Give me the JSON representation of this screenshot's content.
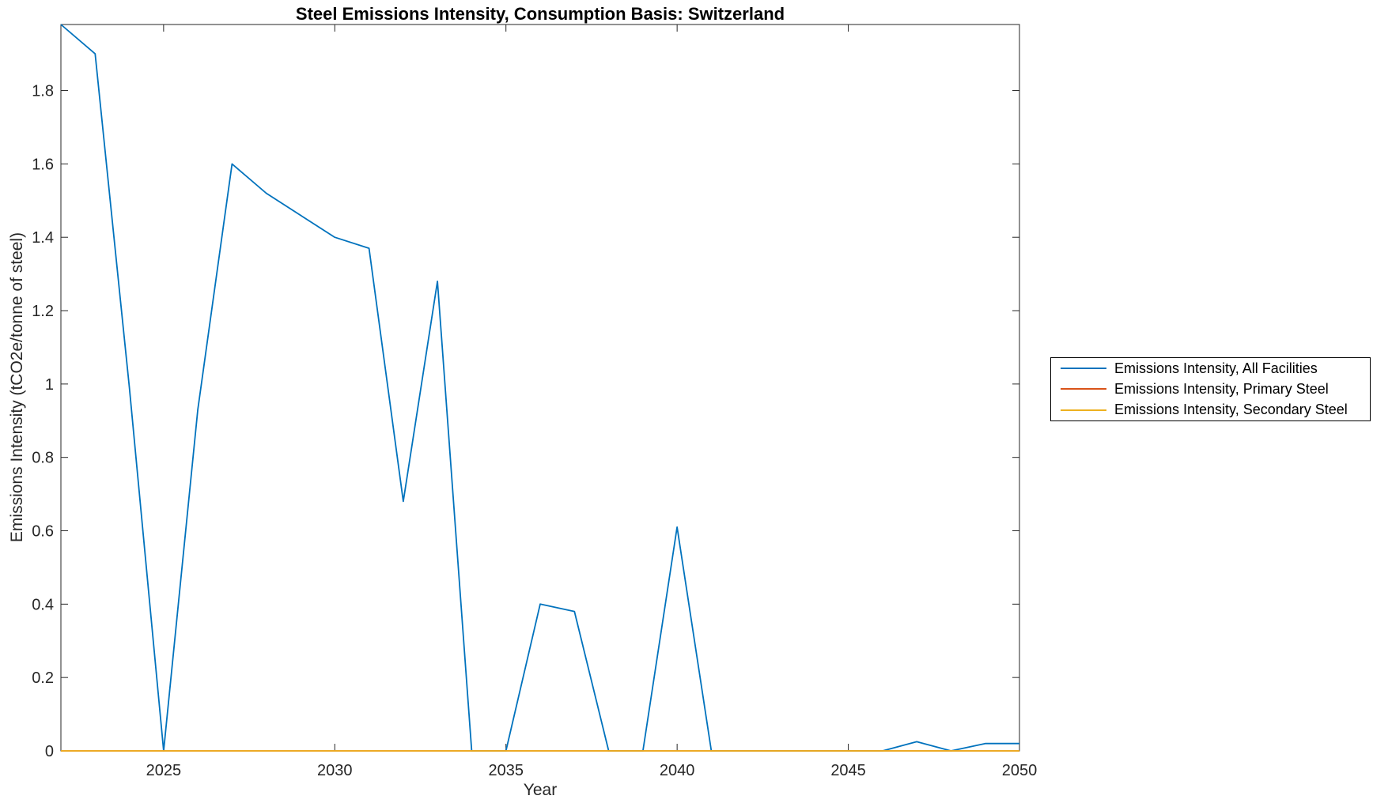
{
  "figure": {
    "background": "#ffffff",
    "axis_color": "#262626",
    "tick_label_color": "#262626",
    "legend_border_color": "#000000"
  },
  "chart_data": {
    "type": "line",
    "title": "Steel Emissions Intensity, Consumption Basis: Switzerland",
    "xlabel": "Year",
    "ylabel": "Emissions Intensity (tCO2e/tonne of steel)",
    "xlim": [
      2022,
      2050
    ],
    "ylim": [
      0,
      1.98
    ],
    "grid": false,
    "legend_position": "right-outside",
    "x_ticks": [
      2025,
      2030,
      2035,
      2040,
      2045,
      2050
    ],
    "x_tick_labels": [
      "2025",
      "2030",
      "2035",
      "2040",
      "2045",
      "2050"
    ],
    "y_ticks": [
      0,
      0.2,
      0.4,
      0.6,
      0.8,
      1,
      1.2,
      1.4,
      1.6,
      1.8
    ],
    "y_tick_labels": [
      "0",
      "0.2",
      "0.4",
      "0.6",
      "0.8",
      "1",
      "1.2",
      "1.4",
      "1.6",
      "1.8"
    ],
    "x": [
      2022,
      2023,
      2024,
      2025,
      2026,
      2027,
      2028,
      2029,
      2030,
      2031,
      2032,
      2033,
      2034,
      2035,
      2036,
      2037,
      2038,
      2039,
      2040,
      2041,
      2042,
      2043,
      2044,
      2045,
      2046,
      2047,
      2048,
      2049,
      2050
    ],
    "series": [
      {
        "name": "Emissions Intensity, All Facilities",
        "slug": "all-facilities",
        "color": "#0072BD",
        "values": [
          1.98,
          1.9,
          0.99,
          0,
          0.93,
          1.6,
          1.52,
          1.46,
          1.4,
          1.37,
          0.68,
          1.28,
          0,
          0,
          0.4,
          0.38,
          0,
          0,
          0.61,
          0,
          0,
          0,
          0,
          0,
          0,
          0.025,
          0,
          0.02,
          0.02
        ]
      },
      {
        "name": "Emissions Intensity, Primary Steel",
        "slug": "primary-steel",
        "color": "#D95319",
        "values": [
          0,
          0,
          0,
          0,
          0,
          0,
          0,
          0,
          0,
          0,
          0,
          0,
          0,
          0,
          0,
          0,
          0,
          0,
          0,
          0,
          0,
          0,
          0,
          0,
          0,
          0,
          0,
          0,
          0
        ]
      },
      {
        "name": "Emissions Intensity, Secondary Steel",
        "slug": "secondary-steel",
        "color": "#EDB120",
        "values": [
          0,
          0,
          0,
          0,
          0,
          0,
          0,
          0,
          0,
          0,
          0,
          0,
          0,
          0,
          0,
          0,
          0,
          0,
          0,
          0,
          0,
          0,
          0,
          0,
          0,
          0,
          0,
          0,
          0
        ]
      }
    ]
  }
}
